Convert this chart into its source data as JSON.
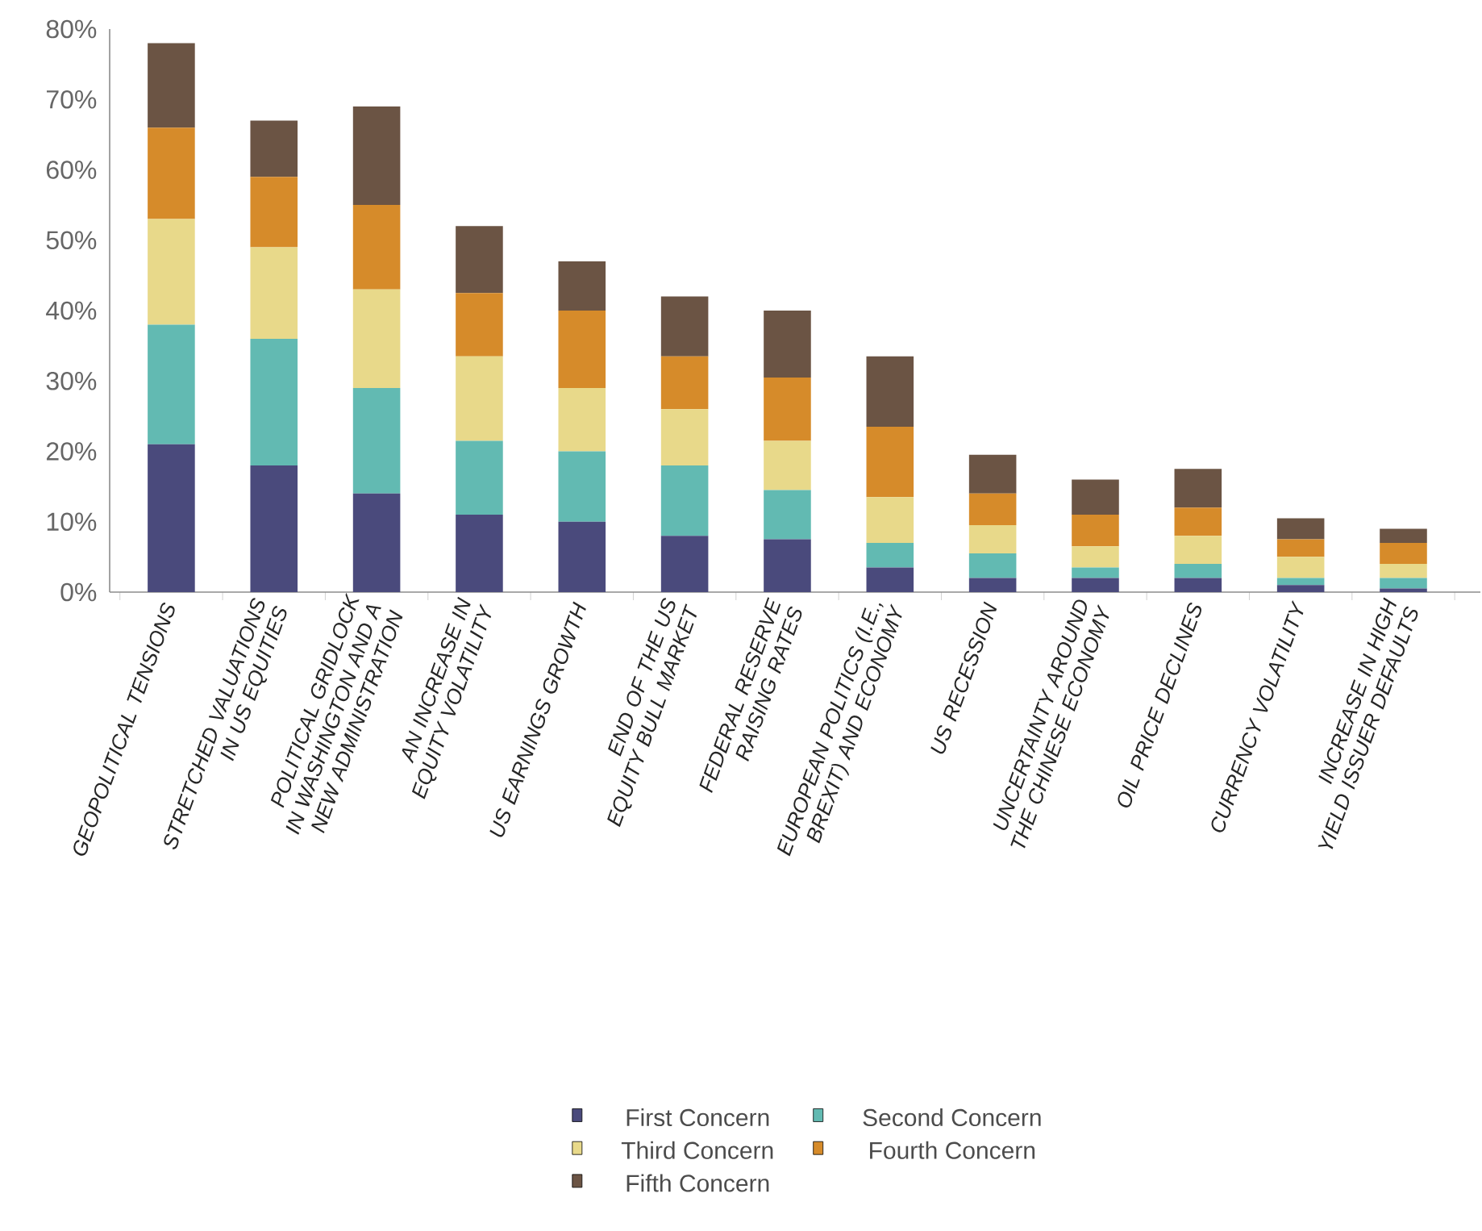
{
  "chart_data": {
    "type": "bar",
    "stacked": true,
    "categories": [
      "GEOPOLITICAL TENSIONS",
      "STRETCHED VALUATIONS IN US EQUITIES",
      "POLITICAL GRIDLOCK IN WASHINGTON AND A NEW ADMINISTRATION",
      "AN INCREASE IN EQUITY VOLATILITY",
      "US EARNINGS GROWTH",
      "END OF THE US EQUITY BULL MARKET",
      "FEDERAL RESERVE RAISING RATES",
      "EUROPEAN POLITICS (I.E., BREXIT) AND ECONOMY",
      "US RECESSION",
      "UNCERTAINTY AROUND THE CHINESE ECONOMY",
      "OIL PRICE DECLINES",
      "CURRENCY VOLATILITY",
      "INCREASE IN HIGH YIELD ISSUER DEFAULTS"
    ],
    "series": [
      {
        "name": "First Concern",
        "color": "#4a4a7c",
        "values": [
          21,
          18,
          14,
          11,
          10,
          8,
          7.5,
          3.5,
          2,
          2,
          2,
          1,
          0.5
        ]
      },
      {
        "name": "Second Concern",
        "color": "#62bab2",
        "values": [
          17,
          18,
          15,
          10.5,
          10,
          10,
          7,
          3.5,
          3.5,
          1.5,
          2,
          1,
          1.5
        ]
      },
      {
        "name": "Third Concern",
        "color": "#e8d98a",
        "values": [
          15,
          13,
          14,
          12,
          9,
          8,
          7,
          6.5,
          4,
          3,
          4,
          3,
          2
        ]
      },
      {
        "name": "Fourth Concern",
        "color": "#d68b2a",
        "values": [
          13,
          10,
          12,
          9,
          11,
          7.5,
          9,
          10,
          4.5,
          4.5,
          4,
          2.5,
          3
        ]
      },
      {
        "name": "Fifth Concern",
        "color": "#6b5444",
        "values": [
          12,
          8,
          14,
          9.5,
          7,
          8.5,
          9.5,
          10,
          5.5,
          5,
          5.5,
          3,
          2
        ]
      }
    ],
    "ylim": [
      0,
      80
    ],
    "yticks": [
      {
        "value": 0,
        "label": "0%"
      },
      {
        "value": 10,
        "label": "10%"
      },
      {
        "value": 20,
        "label": "20%"
      },
      {
        "value": 30,
        "label": "30%"
      },
      {
        "value": 40,
        "label": "40%"
      },
      {
        "value": 50,
        "label": "50%"
      },
      {
        "value": 60,
        "label": "60%"
      },
      {
        "value": 70,
        "label": "70%"
      },
      {
        "value": 80,
        "label": "80%"
      }
    ],
    "grid": false,
    "legend": "bottom"
  }
}
